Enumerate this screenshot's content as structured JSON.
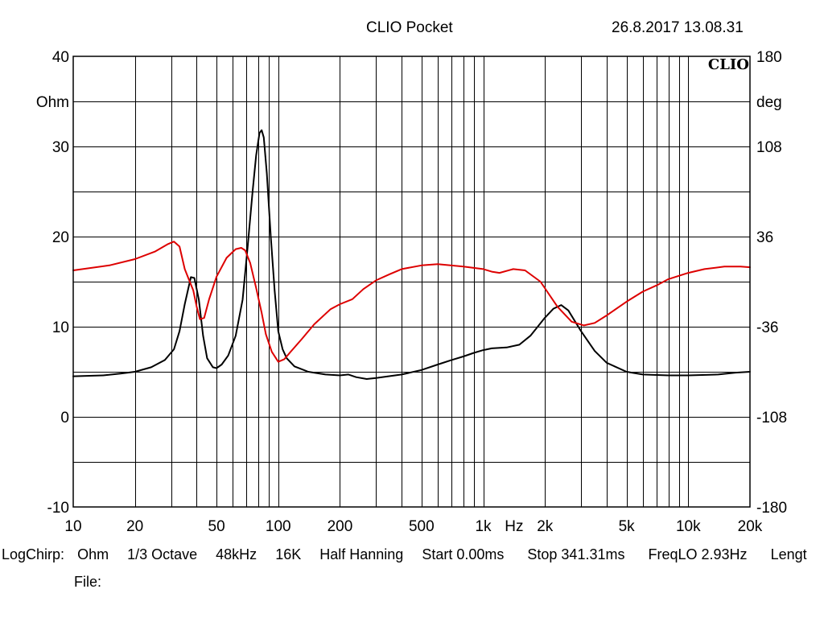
{
  "header": {
    "title": "CLIO Pocket",
    "timestamp": "26.8.2017 13.08.31"
  },
  "logo": "CLIO",
  "footer": {
    "mode": "LogChirp:",
    "unit": "Ohm",
    "smoothing": "1/3 Octave",
    "sample_rate": "48kHz",
    "fft_size": "16K",
    "window": "Half Hanning",
    "start": "Start 0.00ms",
    "stop": "Stop 341.31ms",
    "freq_lo": "FreqLO 2.93Hz",
    "length": "Lengt",
    "file_label": "File:"
  },
  "colors": {
    "magnitude": "#000000",
    "phase": "#dd0000",
    "grid": "#000000"
  },
  "chart_data": {
    "type": "line",
    "x_scale": "log",
    "xlim": [
      10,
      20000
    ],
    "x_ticks": [
      {
        "v": 10,
        "label": "10"
      },
      {
        "v": 20,
        "label": "20"
      },
      {
        "v": 50,
        "label": "50"
      },
      {
        "v": 100,
        "label": "100"
      },
      {
        "v": 200,
        "label": "200"
      },
      {
        "v": 500,
        "label": "500"
      },
      {
        "v": 1000,
        "label": "1k"
      },
      {
        "v": 2000,
        "label": "2k"
      },
      {
        "v": 5000,
        "label": "5k"
      },
      {
        "v": 10000,
        "label": "10k"
      },
      {
        "v": 20000,
        "label": "20k"
      }
    ],
    "x_unit_label": "Hz",
    "y_left": {
      "label": "Ohm",
      "lim": [
        -10,
        40
      ],
      "ticks": [
        {
          "v": -10,
          "label": "-10"
        },
        {
          "v": 0,
          "label": "0"
        },
        {
          "v": 10,
          "label": "10"
        },
        {
          "v": 20,
          "label": "20"
        },
        {
          "v": 30,
          "label": "30"
        },
        {
          "v": 40,
          "label": "40"
        }
      ]
    },
    "y_right": {
      "label": "deg",
      "lim": [
        -180,
        180
      ],
      "ticks": [
        {
          "v": -180,
          "label": "-180"
        },
        {
          "v": -108,
          "label": "-108"
        },
        {
          "v": -36,
          "label": "-36"
        },
        {
          "v": 36,
          "label": "36"
        },
        {
          "v": 108,
          "label": "108"
        },
        {
          "v": 180,
          "label": "180"
        }
      ]
    },
    "grid": true,
    "series": [
      {
        "key": "magnitude",
        "axis": "left",
        "points": [
          [
            10,
            4.5
          ],
          [
            14,
            4.6
          ],
          [
            17,
            4.8
          ],
          [
            20,
            5.0
          ],
          [
            24,
            5.5
          ],
          [
            28,
            6.3
          ],
          [
            31,
            7.5
          ],
          [
            33,
            9.5
          ],
          [
            35,
            12.5
          ],
          [
            37.5,
            15.5
          ],
          [
            39,
            15.4
          ],
          [
            41,
            13
          ],
          [
            43,
            9
          ],
          [
            45,
            6.5
          ],
          [
            48,
            5.5
          ],
          [
            50,
            5.4
          ],
          [
            53,
            5.8
          ],
          [
            57,
            6.8
          ],
          [
            62,
            9.0
          ],
          [
            67,
            13
          ],
          [
            71,
            19
          ],
          [
            75,
            25
          ],
          [
            78,
            29
          ],
          [
            81,
            31.5
          ],
          [
            83,
            31.8
          ],
          [
            85,
            31
          ],
          [
            88,
            27
          ],
          [
            92,
            20
          ],
          [
            96,
            14
          ],
          [
            100,
            9.5
          ],
          [
            105,
            7.5
          ],
          [
            110,
            6.5
          ],
          [
            120,
            5.6
          ],
          [
            140,
            5.0
          ],
          [
            170,
            4.7
          ],
          [
            200,
            4.6
          ],
          [
            220,
            4.7
          ],
          [
            240,
            4.4
          ],
          [
            270,
            4.2
          ],
          [
            300,
            4.3
          ],
          [
            400,
            4.7
          ],
          [
            500,
            5.2
          ],
          [
            600,
            5.8
          ],
          [
            700,
            6.3
          ],
          [
            800,
            6.7
          ],
          [
            900,
            7.1
          ],
          [
            1000,
            7.4
          ],
          [
            1100,
            7.6
          ],
          [
            1300,
            7.7
          ],
          [
            1500,
            8.0
          ],
          [
            1700,
            9.0
          ],
          [
            2000,
            11
          ],
          [
            2200,
            12
          ],
          [
            2400,
            12.4
          ],
          [
            2600,
            11.8
          ],
          [
            3000,
            9.5
          ],
          [
            3500,
            7.3
          ],
          [
            4000,
            6.0
          ],
          [
            5000,
            5.0
          ],
          [
            6000,
            4.7
          ],
          [
            8000,
            4.6
          ],
          [
            10000,
            4.6
          ],
          [
            14000,
            4.7
          ],
          [
            17000,
            4.9
          ],
          [
            20000,
            5.0
          ]
        ]
      },
      {
        "key": "phase",
        "axis": "right",
        "points": [
          [
            10,
            9
          ],
          [
            15,
            13
          ],
          [
            20,
            18
          ],
          [
            25,
            24
          ],
          [
            29,
            30
          ],
          [
            31,
            32
          ],
          [
            33,
            28
          ],
          [
            35,
            10
          ],
          [
            37,
            0
          ],
          [
            38.5,
            -7
          ],
          [
            40,
            -20
          ],
          [
            41.5,
            -30
          ],
          [
            43.5,
            -29
          ],
          [
            46,
            -14
          ],
          [
            50,
            4
          ],
          [
            56,
            19
          ],
          [
            62,
            26
          ],
          [
            66,
            27
          ],
          [
            69,
            25
          ],
          [
            73,
            15
          ],
          [
            78,
            -5
          ],
          [
            83,
            -25
          ],
          [
            87,
            -42
          ],
          [
            93,
            -56
          ],
          [
            100,
            -64
          ],
          [
            107,
            -62
          ],
          [
            115,
            -56
          ],
          [
            130,
            -46
          ],
          [
            150,
            -34
          ],
          [
            180,
            -22
          ],
          [
            200,
            -18
          ],
          [
            230,
            -14
          ],
          [
            260,
            -6
          ],
          [
            300,
            1
          ],
          [
            350,
            6
          ],
          [
            400,
            10
          ],
          [
            500,
            13
          ],
          [
            600,
            14
          ],
          [
            800,
            12
          ],
          [
            1000,
            10
          ],
          [
            1100,
            8
          ],
          [
            1200,
            7
          ],
          [
            1400,
            10
          ],
          [
            1600,
            9
          ],
          [
            1900,
            0
          ],
          [
            2300,
            -20
          ],
          [
            2700,
            -32
          ],
          [
            3100,
            -35
          ],
          [
            3500,
            -33
          ],
          [
            4000,
            -27
          ],
          [
            5000,
            -16
          ],
          [
            6000,
            -8
          ],
          [
            7000,
            -3
          ],
          [
            8000,
            2
          ],
          [
            10000,
            7
          ],
          [
            12000,
            10
          ],
          [
            15000,
            12
          ],
          [
            18000,
            12
          ],
          [
            20000,
            11.5
          ]
        ]
      }
    ]
  }
}
